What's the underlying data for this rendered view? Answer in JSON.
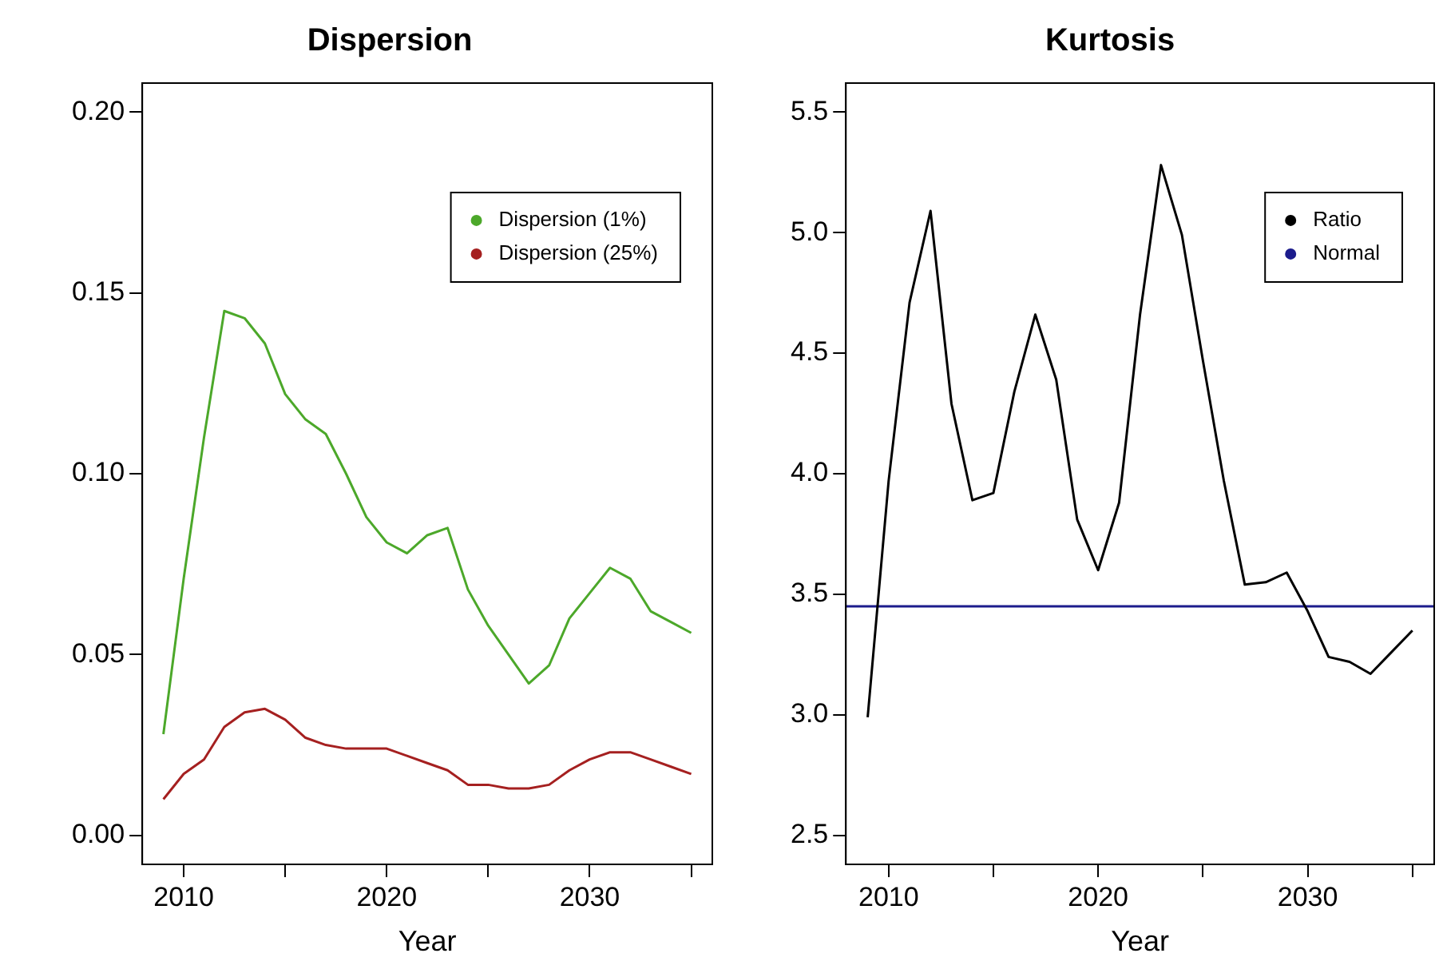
{
  "chart_data": [
    {
      "type": "line",
      "title": "Dispersion",
      "xlabel": "Year",
      "x": [
        2009,
        2010,
        2011,
        2012,
        2013,
        2014,
        2015,
        2016,
        2017,
        2018,
        2019,
        2020,
        2021,
        2022,
        2023,
        2024,
        2025,
        2026,
        2027,
        2028,
        2029,
        2030,
        2031,
        2032,
        2033,
        2034,
        2035
      ],
      "series": [
        {
          "name": "Dispersion (1%)",
          "color": "#4ca82a",
          "values": [
            0.028,
            0.071,
            0.11,
            0.145,
            0.143,
            0.136,
            0.122,
            0.115,
            0.111,
            0.1,
            0.088,
            0.081,
            0.078,
            0.083,
            0.085,
            0.068,
            0.058,
            0.05,
            0.042,
            0.047,
            0.06,
            0.067,
            0.074,
            0.071,
            0.062,
            0.059,
            0.056
          ]
        },
        {
          "name": "Dispersion (25%)",
          "color": "#a52020",
          "values": [
            0.01,
            0.017,
            0.021,
            0.03,
            0.034,
            0.035,
            0.032,
            0.027,
            0.025,
            0.024,
            0.024,
            0.024,
            0.022,
            0.02,
            0.018,
            0.014,
            0.014,
            0.013,
            0.013,
            0.014,
            0.018,
            0.021,
            0.023,
            0.023,
            0.021,
            0.019,
            0.017
          ]
        }
      ],
      "xlim": [
        2007.96,
        2036.04
      ],
      "xticks": [
        2010,
        {
          "value": 2015,
          "label": null
        },
        2020,
        {
          "value": 2025,
          "label": null
        },
        2030,
        {
          "value": 2035,
          "label": null
        }
      ],
      "ylim": [
        -0.008,
        0.208
      ],
      "yticks": [
        {
          "value": 0,
          "label": "0.00"
        },
        0.05,
        {
          "value": 0.1,
          "label": "0.10"
        },
        0.15,
        {
          "value": 0.2,
          "label": "0.20"
        }
      ],
      "grid": false,
      "legend": "top right"
    },
    {
      "type": "line",
      "title": "Kurtosis",
      "xlabel": "Year",
      "x": [
        2009,
        2010,
        2011,
        2012,
        2013,
        2014,
        2015,
        2016,
        2017,
        2018,
        2019,
        2020,
        2021,
        2022,
        2023,
        2024,
        2025,
        2026,
        2027,
        2028,
        2029,
        2030,
        2031,
        2032,
        2033,
        2034,
        2035
      ],
      "series": [
        {
          "name": "Ratio",
          "color": "#000000",
          "values": [
            2.99,
            3.97,
            4.71,
            5.09,
            4.29,
            3.89,
            3.92,
            4.34,
            4.66,
            4.39,
            3.81,
            3.6,
            3.88,
            4.66,
            5.28,
            4.99,
            4.47,
            3.97,
            3.54,
            3.55,
            3.59,
            3.43,
            3.24,
            3.22,
            3.17,
            3.26,
            3.35
          ]
        }
      ],
      "ref_lines": [
        {
          "axis": "y",
          "value": 3.45,
          "label": "Normal",
          "color": "#1c1c8c"
        }
      ],
      "xlim": [
        2007.96,
        2036.04
      ],
      "xticks": [
        2010,
        {
          "value": 2015,
          "label": null
        },
        2020,
        {
          "value": 2025,
          "label": null
        },
        2030,
        {
          "value": 2035,
          "label": null
        }
      ],
      "ylim": [
        2.38,
        5.62
      ],
      "yticks": [
        2.5,
        {
          "value": 3,
          "label": "3.0"
        },
        3.5,
        {
          "value": 4,
          "label": "4.0"
        },
        4.5,
        {
          "value": 5,
          "label": "5.0"
        },
        5.5
      ],
      "grid": false,
      "legend": "top right"
    }
  ]
}
